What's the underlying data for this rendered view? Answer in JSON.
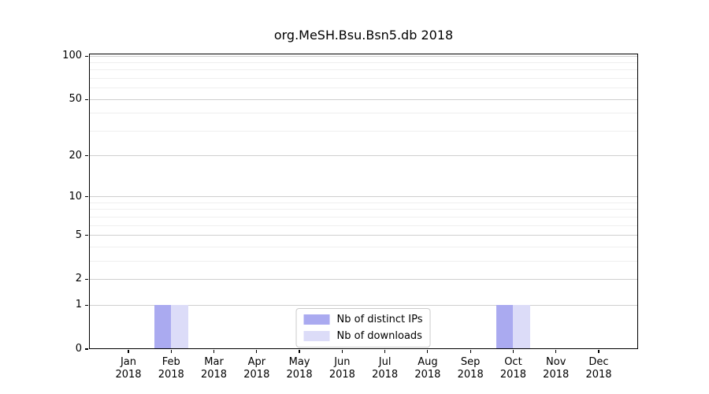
{
  "chart_data": {
    "type": "bar",
    "title": "org.MeSH.Bsu.Bsn5.db 2018",
    "year": "2018",
    "categories": [
      "Jan",
      "Feb",
      "Mar",
      "Apr",
      "May",
      "Jun",
      "Jul",
      "Aug",
      "Sep",
      "Oct",
      "Nov",
      "Dec"
    ],
    "series": [
      {
        "name": "Nb of distinct IPs",
        "color": "#aaaaf0",
        "values": [
          0,
          1,
          0,
          0,
          0,
          0,
          0,
          0,
          0,
          1,
          0,
          0
        ]
      },
      {
        "name": "Nb of downloads",
        "color": "#dcdcf8",
        "values": [
          0,
          1,
          0,
          0,
          0,
          0,
          0,
          0,
          0,
          1,
          0,
          0
        ]
      }
    ],
    "y_axis": {
      "scale": "log1p",
      "tick_values": [
        0,
        1,
        2,
        5,
        10,
        20,
        50,
        100
      ],
      "tick_labels": [
        "0",
        "1",
        "2",
        "5",
        "10",
        "20",
        "50",
        "100"
      ],
      "minor_gridline_values": [
        3,
        4,
        6,
        7,
        8,
        9,
        30,
        40,
        60,
        70,
        80,
        90
      ],
      "range_max": 104
    },
    "grid": {
      "major_color": "#cfcfcf",
      "minor_color": "#efefef"
    },
    "legend": {
      "position": "lower center"
    }
  }
}
